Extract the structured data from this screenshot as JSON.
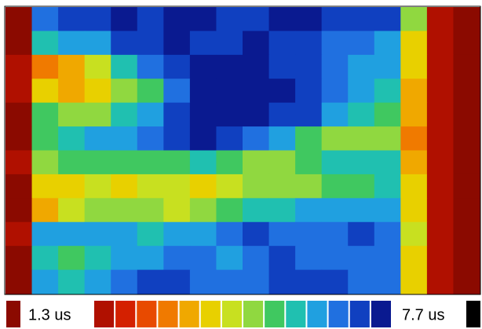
{
  "chart_data": {
    "type": "heatmap",
    "z": [
      [
        1.5,
        6.5,
        6.8,
        7.0,
        7.2,
        7.0,
        7.3,
        7.2,
        7.0,
        6.8,
        7.1,
        7.3,
        7.0,
        6.9,
        6.7,
        4.5,
        1.6,
        1.5
      ],
      [
        1.5,
        5.5,
        5.8,
        6.2,
        6.8,
        7.0,
        7.2,
        7.0,
        6.9,
        7.2,
        7.0,
        6.8,
        6.5,
        6.3,
        6.0,
        4.0,
        1.6,
        1.5
      ],
      [
        1.6,
        3.2,
        3.6,
        4.2,
        5.5,
        6.5,
        7.0,
        7.2,
        7.3,
        7.1,
        7.0,
        6.8,
        6.6,
        6.2,
        5.8,
        3.8,
        1.7,
        1.5
      ],
      [
        1.6,
        3.8,
        3.5,
        4.0,
        4.5,
        5.2,
        6.5,
        7.2,
        7.4,
        7.3,
        7.1,
        7.0,
        6.5,
        6.0,
        5.5,
        3.5,
        1.6,
        1.5
      ],
      [
        1.5,
        5.0,
        4.5,
        4.8,
        5.5,
        6.0,
        6.8,
        7.3,
        7.4,
        7.2,
        7.0,
        6.8,
        6.2,
        5.6,
        5.0,
        3.4,
        1.6,
        1.5
      ],
      [
        1.5,
        5.2,
        5.5,
        5.8,
        6.2,
        6.6,
        7.0,
        7.1,
        6.8,
        6.5,
        6.0,
        5.2,
        4.8,
        4.5,
        4.6,
        3.2,
        1.6,
        1.5
      ],
      [
        1.6,
        4.8,
        5.2,
        5.0,
        5.3,
        5.0,
        5.2,
        5.5,
        5.0,
        4.6,
        4.8,
        5.0,
        5.4,
        5.6,
        5.4,
        3.6,
        1.6,
        1.5
      ],
      [
        1.5,
        3.8,
        4.0,
        4.2,
        4.0,
        4.4,
        4.3,
        4.0,
        4.2,
        4.5,
        4.6,
        4.8,
        5.0,
        5.2,
        5.5,
        3.8,
        1.7,
        1.5
      ],
      [
        1.5,
        3.5,
        4.2,
        4.5,
        4.8,
        4.5,
        4.2,
        4.6,
        5.0,
        5.4,
        5.6,
        5.8,
        6.0,
        6.2,
        6.0,
        4.0,
        1.6,
        1.5
      ],
      [
        1.6,
        5.8,
        6.0,
        6.2,
        6.0,
        5.6,
        5.8,
        6.2,
        6.6,
        6.8,
        6.6,
        6.4,
        6.5,
        6.8,
        6.6,
        4.2,
        1.6,
        1.5
      ],
      [
        1.5,
        5.6,
        5.2,
        5.4,
        5.8,
        6.2,
        6.5,
        6.3,
        6.0,
        6.4,
        6.8,
        6.6,
        6.3,
        6.5,
        6.4,
        4.0,
        1.6,
        1.5
      ],
      [
        1.5,
        5.8,
        5.5,
        6.0,
        6.4,
        6.7,
        6.9,
        6.6,
        6.3,
        6.6,
        6.9,
        7.0,
        6.8,
        6.6,
        6.3,
        3.8,
        1.6,
        1.5
      ]
    ],
    "zlim": [
      {
        "value": 1.3,
        "label": "1.3 us"
      },
      {
        "value": 7.7,
        "label": "7.7 us"
      }
    ],
    "colorscale": [
      "#8b0a00",
      "#b01000",
      "#d42000",
      "#e84a00",
      "#f07a00",
      "#f0a800",
      "#e8d000",
      "#c8e020",
      "#90d840",
      "#40c860",
      "#20c0b0",
      "#20a0e0",
      "#2070e0",
      "#1040c0",
      "#0a1a90",
      "#000000"
    ]
  }
}
